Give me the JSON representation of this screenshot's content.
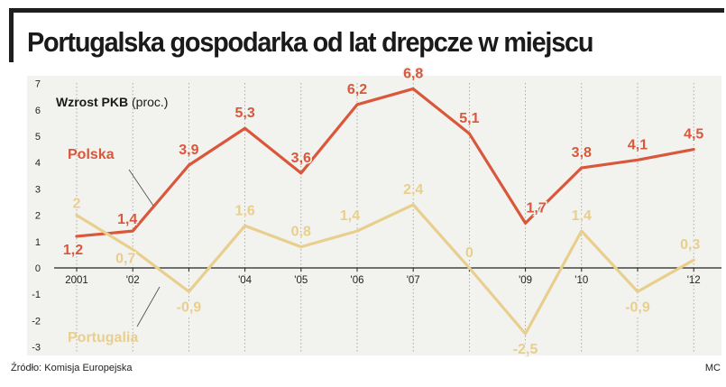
{
  "title": "Portugalska gospodarka od lat drepcze w miejscu",
  "source": "Źródło: Komisja Europejska",
  "credit": "MC",
  "colors": {
    "poland": "#d9573a",
    "portugal": "#e9cf8d",
    "grid": "#9a9a9a",
    "axis": "#222222"
  },
  "chart_data": {
    "type": "line",
    "title": "Portugalska gospodarka od lat drepcze w miejscu",
    "ylabel_bold": "Wzrost PKB",
    "ylabel_unit": "(proc.)",
    "x": [
      2001,
      2002,
      2003,
      2004,
      2005,
      2006,
      2007,
      2008,
      2009,
      2010,
      2011,
      2012
    ],
    "x_tick_labels": [
      "2001",
      "'02",
      "",
      "'04",
      "'05",
      "'06",
      "'07",
      "",
      "'09",
      "'10",
      "",
      "'12"
    ],
    "y_ticks": [
      7,
      6,
      5,
      4,
      3,
      2,
      1,
      0,
      -1,
      -2,
      -3
    ],
    "ylim": [
      -3,
      7
    ],
    "grid": "vertical dotted",
    "series": [
      {
        "name": "Polska",
        "values": [
          1.2,
          1.4,
          3.9,
          5.3,
          3.6,
          6.2,
          6.8,
          5.1,
          1.7,
          3.8,
          4.1,
          4.5
        ],
        "labels": [
          "1,2",
          "1,4",
          "3,9",
          "5,3",
          "3,6",
          "6,2",
          "6,8",
          "5,1",
          "1,7",
          "3,8",
          "4,1",
          "4,5"
        ]
      },
      {
        "name": "Portugalia",
        "values": [
          2,
          0.7,
          -0.9,
          1.6,
          0.8,
          1.4,
          2.4,
          0,
          -2.5,
          1.4,
          -0.9,
          0.3
        ],
        "labels": [
          "2",
          "0,7",
          "-0,9",
          "1,6",
          "0,8",
          "1,4",
          "2,4",
          "0",
          "-2,5",
          "1,4",
          "-0,9",
          "0,3"
        ]
      }
    ]
  }
}
